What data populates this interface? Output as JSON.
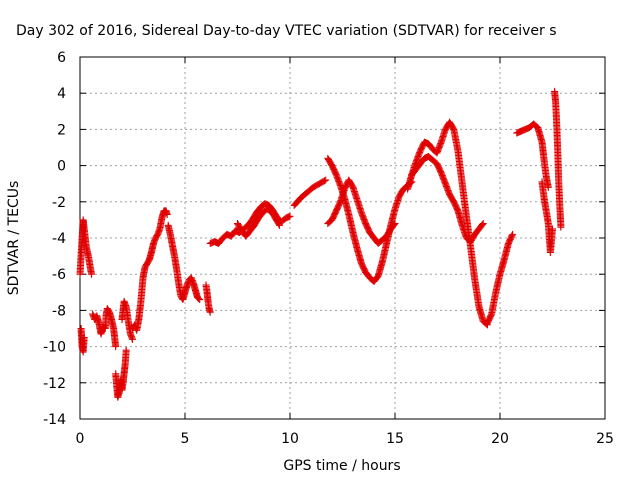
{
  "chart_data": {
    "type": "scatter",
    "title": "Day 302 of 2016, Sidereal Day-to-day VTEC variation (SDTVAR) for receiver s",
    "xlabel": "GPS time / hours",
    "ylabel": "SDTVAR / TECUs",
    "xlim": [
      0,
      25
    ],
    "ylim": [
      -14,
      6
    ],
    "xticks": [
      0,
      5,
      10,
      15,
      20,
      25
    ],
    "yticks": [
      -14,
      -12,
      -10,
      -8,
      -6,
      -4,
      -2,
      0,
      2,
      4,
      6
    ],
    "grid": true,
    "marker": "plus",
    "color": "#e00000",
    "series": [
      {
        "x": [
          0,
          0.1,
          0.15,
          0.2,
          0.3,
          0.4,
          0.5,
          0.55
        ],
        "y": [
          -6,
          -4,
          -3,
          -3.5,
          -4.5,
          -5,
          -5.7,
          -6
        ]
      },
      {
        "x": [
          0.05,
          0.1,
          0.15,
          0.2
        ],
        "y": [
          -9,
          -10,
          -10.3,
          -9.5
        ]
      },
      {
        "x": [
          0.6,
          0.7,
          0.8,
          0.9,
          1.0,
          1.1,
          1.2,
          1.25,
          1.3,
          1.4,
          1.5,
          1.6,
          1.7
        ],
        "y": [
          -8.2,
          -8.5,
          -8.3,
          -8.7,
          -9.3,
          -8.9,
          -9.0,
          -8.2,
          -7.9,
          -8.1,
          -8.5,
          -9.0,
          -10.0
        ]
      },
      {
        "x": [
          1.7,
          1.75,
          1.8,
          1.85,
          1.9,
          1.95,
          2.0,
          2.05,
          2.1,
          2.15,
          2.2
        ],
        "y": [
          -11.5,
          -12.2,
          -12.8,
          -12.6,
          -12.1,
          -11.8,
          -12.4,
          -12.0,
          -11.5,
          -11.0,
          -10.2
        ]
      },
      {
        "x": [
          2.0,
          2.1,
          2.2,
          2.3,
          2.4,
          2.5
        ],
        "y": [
          -8.5,
          -7.5,
          -7.8,
          -8.6,
          -9.3,
          -9.6
        ]
      },
      {
        "x": [
          2.5,
          2.6,
          2.7,
          2.8,
          2.9,
          3.0,
          3.1,
          3.2,
          3.3,
          3.4,
          3.5,
          3.6,
          3.7,
          3.8,
          3.9,
          4.0,
          4.1,
          4.15
        ],
        "y": [
          -9.0,
          -8.8,
          -9.1,
          -8.5,
          -7.5,
          -6.2,
          -5.6,
          -5.4,
          -5.2,
          -4.8,
          -4.3,
          -4.0,
          -3.8,
          -3.5,
          -2.9,
          -2.5,
          -2.5,
          -2.7
        ]
      },
      {
        "x": [
          4.2,
          4.3,
          4.4,
          4.5,
          4.6,
          4.7,
          4.8,
          4.9,
          5.0,
          5.1,
          5.2,
          5.3,
          5.4,
          5.5,
          5.6,
          5.7
        ],
        "y": [
          -3.3,
          -3.8,
          -4.4,
          -5.0,
          -5.7,
          -6.5,
          -7.2,
          -7.4,
          -7.0,
          -6.6,
          -6.3,
          -6.2,
          -6.5,
          -6.9,
          -7.3,
          -7.4
        ]
      },
      {
        "x": [
          6.0,
          6.05,
          6.1,
          6.15,
          6.2
        ],
        "y": [
          -6.6,
          -7.0,
          -7.5,
          -7.9,
          -8.1
        ]
      },
      {
        "x": [
          6.2,
          6.4,
          6.6,
          6.8,
          7.0,
          7.2,
          7.4,
          7.6,
          7.8,
          8.0,
          8.2,
          8.4,
          8.6,
          8.8,
          9.0,
          9.2,
          9.4,
          9.6,
          9.8,
          10.0
        ],
        "y": [
          -4.3,
          -4.2,
          -4.3,
          -4.0,
          -3.8,
          -3.9,
          -3.6,
          -3.7,
          -3.5,
          -3.3,
          -3.0,
          -2.6,
          -2.3,
          -2.1,
          -2.2,
          -2.5,
          -2.9,
          -3.1,
          -2.9,
          -2.8
        ]
      },
      {
        "x": [
          7.5,
          7.7,
          7.9,
          8.1,
          8.3,
          8.5,
          8.7,
          8.9,
          9.1,
          9.3,
          9.5
        ],
        "y": [
          -3.2,
          -3.6,
          -3.9,
          -3.6,
          -3.3,
          -2.9,
          -2.6,
          -2.4,
          -2.5,
          -2.9,
          -3.3
        ]
      },
      {
        "x": [
          10.2,
          10.5,
          10.8,
          11.1,
          11.4,
          11.7
        ],
        "y": [
          -2.2,
          -1.8,
          -1.5,
          -1.2,
          -1.0,
          -0.8
        ]
      },
      {
        "x": [
          11.8,
          12.0,
          12.2,
          12.4,
          12.6,
          12.8,
          13.0,
          13.2,
          13.4,
          13.6,
          13.8,
          14.0,
          14.2,
          14.4,
          14.6,
          14.8,
          15.0,
          15.2,
          15.4,
          15.6,
          15.8
        ],
        "y": [
          0.4,
          0.0,
          -0.5,
          -1.1,
          -1.8,
          -2.7,
          -3.7,
          -4.6,
          -5.4,
          -5.9,
          -6.2,
          -6.4,
          -6.1,
          -5.3,
          -4.3,
          -3.3,
          -2.4,
          -1.7,
          -1.3,
          -1.1,
          -0.9
        ]
      },
      {
        "x": [
          11.8,
          12.0,
          12.2,
          12.4,
          12.6,
          12.8,
          13.0,
          13.2,
          13.4,
          13.6,
          13.8,
          14.0,
          14.2,
          14.4,
          14.6,
          14.8,
          15.0
        ],
        "y": [
          -3.2,
          -3.0,
          -2.5,
          -2.0,
          -1.3,
          -0.8,
          -1.2,
          -1.9,
          -2.6,
          -3.2,
          -3.7,
          -4.0,
          -4.3,
          -4.1,
          -3.9,
          -3.5,
          -3.2
        ]
      },
      {
        "x": [
          15.6,
          15.8,
          16.0,
          16.2,
          16.4,
          16.6,
          16.8,
          17.0,
          17.2,
          17.4,
          17.6,
          17.8,
          18.0,
          18.2,
          18.4,
          18.6,
          18.8,
          19.0,
          19.2,
          19.4
        ],
        "y": [
          -1.3,
          -0.5,
          0.2,
          0.8,
          1.3,
          1.2,
          0.9,
          0.7,
          1.3,
          2.0,
          2.4,
          2.0,
          0.8,
          -1.0,
          -2.8,
          -4.5,
          -6.3,
          -7.8,
          -8.6,
          -8.8
        ]
      },
      {
        "x": [
          15.8,
          16.0,
          16.2,
          16.4,
          16.6,
          16.8,
          17.0,
          17.2,
          17.4,
          17.6,
          17.8,
          18.0,
          18.2,
          18.4,
          18.6,
          18.8,
          19.0,
          19.2
        ],
        "y": [
          -0.5,
          -0.2,
          0.1,
          0.4,
          0.5,
          0.3,
          0.1,
          -0.4,
          -1.0,
          -1.6,
          -2.0,
          -2.5,
          -3.3,
          -4.0,
          -4.2,
          -3.8,
          -3.5,
          -3.2
        ]
      },
      {
        "x": [
          19.4,
          19.6,
          19.8,
          20.0,
          20.2,
          20.4,
          20.6
        ],
        "y": [
          -8.7,
          -8.2,
          -7.0,
          -6.0,
          -5.2,
          -4.3,
          -3.8
        ]
      },
      {
        "x": [
          20.8,
          21.0,
          21.2,
          21.4,
          21.6,
          21.8,
          22.0,
          22.1,
          22.2,
          22.3
        ],
        "y": [
          1.8,
          1.9,
          2.0,
          2.1,
          2.3,
          2.1,
          1.3,
          0.3,
          -0.6,
          -1.2
        ]
      },
      {
        "x": [
          22.0,
          22.1,
          22.2,
          22.3,
          22.35,
          22.4,
          22.5
        ],
        "y": [
          -0.9,
          -1.8,
          -2.5,
          -3.2,
          -4.0,
          -4.8,
          -3.5
        ]
      },
      {
        "x": [
          22.6,
          22.65,
          22.7,
          22.75,
          22.8,
          22.85,
          22.9
        ],
        "y": [
          4.1,
          3.5,
          2.3,
          0.8,
          -1.0,
          -2.3,
          -3.4
        ]
      }
    ]
  }
}
